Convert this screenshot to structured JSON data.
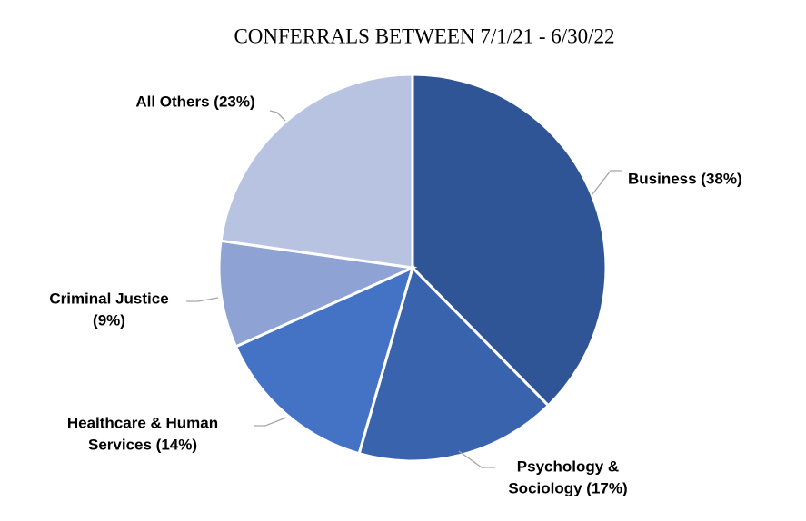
{
  "chart_data": {
    "type": "pie",
    "title": "CONFERRALS BETWEEN 7/1/21 - 6/30/22",
    "values": [
      38,
      17,
      14,
      9,
      23
    ],
    "value_labels": [
      [
        "Business (38%)"
      ],
      [
        "Psychology &",
        "Sociology (17%)"
      ],
      [
        "Healthcare & Human",
        "Services (14%)"
      ],
      [
        "Criminal Justice",
        "(9%)"
      ],
      [
        "All Others (23%)"
      ]
    ],
    "colors": [
      "#2f5597",
      "#3a63ad",
      "#4472c4",
      "#8fa2d4",
      "#b8c3e2"
    ]
  }
}
